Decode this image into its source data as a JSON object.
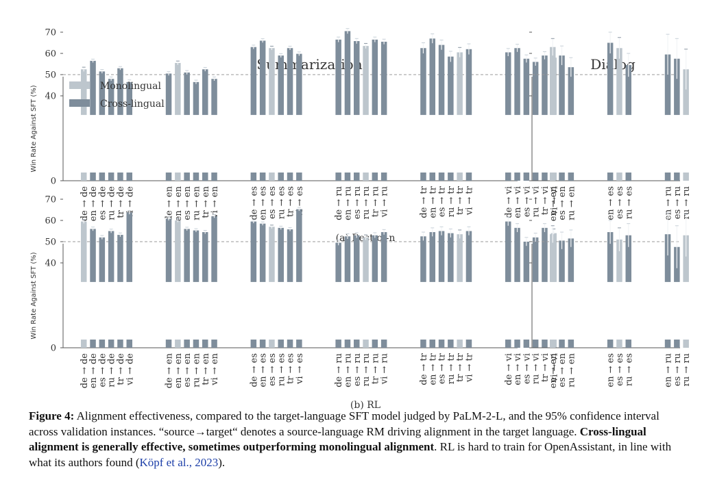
{
  "colors": {
    "mono": "#bdc6cd",
    "cross": "#7e8d9b",
    "axis": "#555555",
    "ref": "#999999",
    "err": "#f2f4f6"
  },
  "legend": {
    "mono": "Monolingual",
    "cross": "Cross-lingual"
  },
  "chart_data": [
    {
      "type": "bar",
      "id": "best_of_n",
      "subtitle": "(a) Best-of-n",
      "ylabel": "Win Rate Against SFT (%)",
      "ylim": [
        0,
        75
      ],
      "yticks": [
        0,
        40,
        50,
        60,
        70
      ],
      "reference_line": 50,
      "panels": [
        {
          "title": "Summarization",
          "groups": [
            {
              "labels": [
                "de → de",
                "en → de",
                "es → de",
                "ru → de",
                "tr → de",
                "vi → de"
              ],
              "values": [
                52.5,
                56.5,
                51.5,
                48,
                53,
                46.5
              ],
              "err": [
                1,
                0.8,
                0.9,
                0.9,
                0.8,
                1
              ],
              "mono": [
                0
              ]
            },
            {
              "labels": [
                "de → en",
                "en → en",
                "es → en",
                "ru → en",
                "tr → en",
                "vi → en"
              ],
              "values": [
                50.5,
                55.5,
                51,
                46.5,
                52.5,
                48
              ],
              "err": [
                0.9,
                0.9,
                0.9,
                0.9,
                0.9,
                0.9
              ],
              "mono": [
                1
              ]
            },
            {
              "labels": [
                "de → es",
                "en → es",
                "es → es",
                "ru → es",
                "tr → es",
                "vi → es"
              ],
              "values": [
                63,
                66,
                62.5,
                59,
                62.5,
                59.8
              ],
              "err": [
                0.9,
                0.9,
                0.9,
                0.9,
                0.9,
                0.9
              ],
              "mono": [
                2
              ]
            },
            {
              "labels": [
                "de → ru",
                "en → ru",
                "es → ru",
                "ru → ru",
                "tr → ru",
                "vi → ru"
              ],
              "values": [
                66.5,
                70.5,
                65.8,
                63.5,
                66.5,
                65.5
              ],
              "err": [
                1.2,
                1.2,
                1.2,
                1.2,
                1.2,
                1.2
              ],
              "mono": [
                3
              ]
            },
            {
              "labels": [
                "de → tr",
                "en → tr",
                "es → tr",
                "ru → tr",
                "tr → tr",
                "vi → tr"
              ],
              "values": [
                62.5,
                67,
                64,
                58.5,
                60.5,
                62
              ],
              "err": [
                2.5,
                2.2,
                2.3,
                2.5,
                2.3,
                2.5
              ],
              "mono": [
                4
              ]
            },
            {
              "labels": [
                "de → vi",
                "en → vi",
                "es → vi",
                "ru → vi",
                "tr → vi",
                "vi → vi"
              ],
              "values": [
                60.5,
                62.5,
                57.5,
                56,
                59,
                58
              ],
              "err": [
                1.8,
                1.8,
                1.8,
                1.8,
                1.8,
                1.8
              ],
              "mono": [
                5
              ]
            }
          ]
        },
        {
          "title": "Dialog",
          "groups": [
            {
              "labels": [
                "en → en",
                "es → en",
                "ru → en"
              ],
              "values": [
                63,
                59,
                53.5
              ],
              "err": [
                4,
                4.5,
                4.5
              ],
              "mono": [
                0
              ]
            },
            {
              "labels": [
                "en → es",
                "es → es",
                "ru → es"
              ],
              "values": [
                65,
                62.5,
                54.5
              ],
              "err": [
                5,
                5,
                5.5
              ],
              "mono": [
                1
              ]
            },
            {
              "labels": [
                "en → ru",
                "es → ru",
                "ru → ru"
              ],
              "values": [
                59.5,
                57.5,
                52.5
              ],
              "err": [
                9.5,
                9.5,
                9.5
              ],
              "mono": [
                2
              ]
            }
          ]
        }
      ]
    },
    {
      "type": "bar",
      "id": "rl",
      "subtitle": "(b) RL",
      "ylabel": "Win Rate Against SFT (%)",
      "ylim": [
        0,
        75
      ],
      "yticks": [
        0,
        40,
        50,
        60,
        70
      ],
      "reference_line": 50,
      "panels": [
        {
          "title": "",
          "groups": [
            {
              "labels": [
                "de → de",
                "en → de",
                "es → de",
                "ru → de",
                "tr → de",
                "vi → de"
              ],
              "values": [
                59.5,
                56,
                52,
                55,
                53.2,
                63.8
              ],
              "err": [
                0.9,
                0.9,
                0.9,
                0.9,
                0.9,
                0.9
              ],
              "mono": [
                0
              ]
            },
            {
              "labels": [
                "de → en",
                "en → en",
                "es → en",
                "ru → en",
                "tr → en",
                "vi → en"
              ],
              "values": [
                60.8,
                60,
                56,
                55.3,
                54.5,
                62
              ],
              "err": [
                0.8,
                0.8,
                0.8,
                0.8,
                0.8,
                0.8
              ],
              "mono": [
                1
              ]
            },
            {
              "labels": [
                "de → es",
                "en → es",
                "es → es",
                "ru → es",
                "tr → es",
                "vi → es"
              ],
              "values": [
                59.5,
                58.5,
                57,
                56.5,
                55.8,
                65.3
              ],
              "err": [
                0.8,
                0.8,
                0.8,
                0.8,
                0.8,
                0.8
              ],
              "mono": [
                2
              ]
            },
            {
              "labels": [
                "de → ru",
                "en → ru",
                "es → ru",
                "ru → ru",
                "tr → ru",
                "vi → ru"
              ],
              "values": [
                49.5,
                52.5,
                53,
                52,
                53,
                54.5
              ],
              "err": [
                1.2,
                1.2,
                1.2,
                1.2,
                1.2,
                1.2
              ],
              "mono": [
                3
              ]
            },
            {
              "labels": [
                "de → tr",
                "en → tr",
                "es → tr",
                "ru → tr",
                "tr → tr",
                "vi → tr"
              ],
              "values": [
                52.5,
                54.5,
                55,
                54,
                53.5,
                55
              ],
              "err": [
                2,
                2,
                2,
                2,
                2,
                2
              ],
              "mono": [
                4
              ]
            },
            {
              "labels": [
                "de → vi",
                "en → vi",
                "es → vi",
                "ru → vi",
                "tr → vi",
                "vi → vi"
              ],
              "values": [
                59.5,
                56.5,
                50,
                52,
                56.5,
                54
              ],
              "err": [
                2,
                2,
                2,
                2,
                2,
                2
              ],
              "mono": [
                5
              ]
            }
          ]
        },
        {
          "title": "",
          "groups": [
            {
              "labels": [
                "en → en",
                "es → en",
                "ru → en"
              ],
              "values": [
                53.5,
                50.5,
                51.5
              ],
              "err": [
                4,
                4,
                4
              ],
              "mono": [
                0
              ]
            },
            {
              "labels": [
                "en → es",
                "es → es",
                "ru → es"
              ],
              "values": [
                54.5,
                51,
                53
              ],
              "err": [
                5.5,
                5.5,
                5.5
              ],
              "mono": [
                1
              ]
            },
            {
              "labels": [
                "en → ru",
                "es → ru",
                "ru → ru"
              ],
              "values": [
                53.5,
                47.5,
                53
              ],
              "err": [
                10,
                10,
                10
              ],
              "mono": [
                2
              ]
            }
          ]
        }
      ]
    }
  ],
  "caption": {
    "label": "Figure 4:",
    "text1": " Alignment effectiveness, compared to the target-language SFT model judged by PaLM-2-L, and the 95% confidence interval across validation instances. “source→target“ denotes a source-language RM driving alignment in the target language. ",
    "bold": "Cross-lingual alignment is generally effective, sometimes outperforming monolingual alignment",
    "text2": ". RL is hard to train for OpenAssistant, in line with what its authors found (",
    "cite": "Köpf et al., 2023",
    "text3": ")."
  }
}
